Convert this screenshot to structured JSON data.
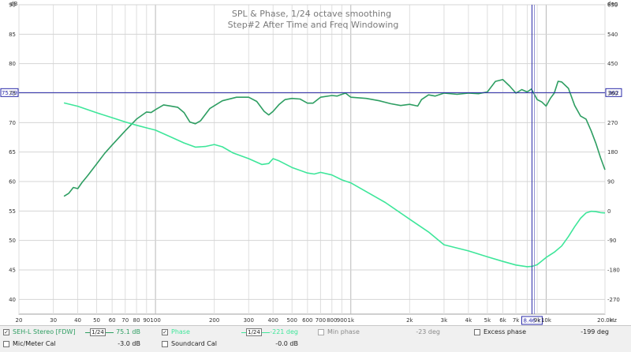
{
  "chart_data": {
    "type": "line",
    "title": "SPL & Phase, 1/24 octave smoothing",
    "subtitle": "Step#2 After Time and Freq Windowing",
    "x_scale": "log",
    "xlim": [
      20,
      20000
    ],
    "x_ticks": [
      {
        "v": 20,
        "label": "20"
      },
      {
        "v": 30,
        "label": "30"
      },
      {
        "v": 40,
        "label": "40"
      },
      {
        "v": 50,
        "label": "50"
      },
      {
        "v": 60,
        "label": "60"
      },
      {
        "v": 70,
        "label": "70"
      },
      {
        "v": 80,
        "label": "80"
      },
      {
        "v": 90,
        "label": "90"
      },
      {
        "v": 100,
        "label": "100"
      },
      {
        "v": 200,
        "label": "200"
      },
      {
        "v": 300,
        "label": "300"
      },
      {
        "v": 400,
        "label": "400"
      },
      {
        "v": 500,
        "label": "500"
      },
      {
        "v": 600,
        "label": "600"
      },
      {
        "v": 700,
        "label": "700"
      },
      {
        "v": 800,
        "label": "800"
      },
      {
        "v": 900,
        "label": "900"
      },
      {
        "v": 1000,
        "label": "1k"
      },
      {
        "v": 2000,
        "label": "2k"
      },
      {
        "v": 3000,
        "label": "3k"
      },
      {
        "v": 4000,
        "label": "4k"
      },
      {
        "v": 5000,
        "label": "5k"
      },
      {
        "v": 6000,
        "label": "6k"
      },
      {
        "v": 7000,
        "label": "7k"
      },
      {
        "v": 9000,
        "label": "9k"
      },
      {
        "v": 10000,
        "label": "10k"
      },
      {
        "v": 20000,
        "label": "20.0k"
      }
    ],
    "x_unit": "Hz",
    "y_left": {
      "unit": "dB",
      "lim": [
        37.5,
        90
      ],
      "ticks": [
        40,
        45,
        50,
        55,
        60,
        65,
        70,
        75,
        80,
        85,
        90
      ]
    },
    "y_right": {
      "unit": "deg",
      "lim": [
        -315,
        630
      ],
      "ticks": [
        -270,
        -180,
        -90,
        0,
        90,
        180,
        270,
        360,
        450,
        540,
        630
      ]
    },
    "cursor": {
      "freq_label": "8.46 k",
      "left_label": "75.09",
      "right_label": "362",
      "x": 8460,
      "y_db": 75.09
    },
    "series": [
      {
        "name": "SEH-L Stereo [FDW]",
        "axis": "left",
        "color": "#2e9e62",
        "points": [
          [
            34,
            57.5
          ],
          [
            36,
            58
          ],
          [
            38,
            59
          ],
          [
            40,
            58.8
          ],
          [
            42,
            59.8
          ],
          [
            45,
            61
          ],
          [
            50,
            63
          ],
          [
            55,
            64.8
          ],
          [
            60,
            66.2
          ],
          [
            70,
            68.6
          ],
          [
            80,
            70.6
          ],
          [
            90,
            71.8
          ],
          [
            95,
            71.7
          ],
          [
            100,
            72.2
          ],
          [
            110,
            73
          ],
          [
            120,
            72.8
          ],
          [
            130,
            72.6
          ],
          [
            140,
            71.7
          ],
          [
            150,
            70.1
          ],
          [
            160,
            69.8
          ],
          [
            170,
            70.3
          ],
          [
            190,
            72.4
          ],
          [
            220,
            73.7
          ],
          [
            260,
            74.3
          ],
          [
            300,
            74.3
          ],
          [
            330,
            73.6
          ],
          [
            360,
            71.9
          ],
          [
            380,
            71.3
          ],
          [
            400,
            71.9
          ],
          [
            430,
            73.1
          ],
          [
            460,
            73.9
          ],
          [
            500,
            74.1
          ],
          [
            550,
            74
          ],
          [
            600,
            73.3
          ],
          [
            640,
            73.3
          ],
          [
            700,
            74.3
          ],
          [
            800,
            74.6
          ],
          [
            850,
            74.5
          ],
          [
            900,
            74.8
          ],
          [
            940,
            75
          ],
          [
            1000,
            74.3
          ],
          [
            1200,
            74.1
          ],
          [
            1400,
            73.7
          ],
          [
            1600,
            73.2
          ],
          [
            1800,
            72.9
          ],
          [
            2000,
            73.1
          ],
          [
            2200,
            72.8
          ],
          [
            2300,
            73.9
          ],
          [
            2500,
            74.7
          ],
          [
            2700,
            74.5
          ],
          [
            3000,
            75
          ],
          [
            3500,
            74.8
          ],
          [
            4000,
            75
          ],
          [
            4500,
            74.9
          ],
          [
            5000,
            75.2
          ],
          [
            5500,
            77
          ],
          [
            6000,
            77.3
          ],
          [
            6500,
            76.2
          ],
          [
            7000,
            75
          ],
          [
            7500,
            75.6
          ],
          [
            8000,
            75.2
          ],
          [
            8400,
            75.7
          ],
          [
            9000,
            73.9
          ],
          [
            9500,
            73.5
          ],
          [
            10000,
            72.8
          ],
          [
            10500,
            74.1
          ],
          [
            11000,
            75
          ],
          [
            11500,
            77
          ],
          [
            12000,
            76.9
          ],
          [
            13000,
            75.8
          ],
          [
            14000,
            72.9
          ],
          [
            15000,
            71.1
          ],
          [
            16000,
            70.6
          ],
          [
            17000,
            68.6
          ],
          [
            18000,
            66.4
          ],
          [
            19000,
            64
          ],
          [
            20000,
            62
          ]
        ]
      },
      {
        "name": "Phase",
        "axis": "right",
        "color": "#3ee69a",
        "points": [
          [
            34,
            330
          ],
          [
            40,
            320
          ],
          [
            50,
            300
          ],
          [
            60,
            285
          ],
          [
            70,
            272
          ],
          [
            80,
            262
          ],
          [
            90,
            254
          ],
          [
            100,
            247
          ],
          [
            120,
            226
          ],
          [
            140,
            208
          ],
          [
            160,
            195
          ],
          [
            180,
            197
          ],
          [
            200,
            203
          ],
          [
            220,
            196
          ],
          [
            250,
            177
          ],
          [
            300,
            160
          ],
          [
            350,
            142
          ],
          [
            380,
            145
          ],
          [
            400,
            160
          ],
          [
            430,
            153
          ],
          [
            500,
            133
          ],
          [
            600,
            116
          ],
          [
            650,
            113
          ],
          [
            700,
            118
          ],
          [
            800,
            110
          ],
          [
            900,
            95
          ],
          [
            1000,
            86
          ],
          [
            1500,
            26
          ],
          [
            2000,
            -25
          ],
          [
            2500,
            -64
          ],
          [
            3000,
            -103
          ],
          [
            4000,
            -122
          ],
          [
            5000,
            -140
          ],
          [
            6000,
            -154
          ],
          [
            7000,
            -165
          ],
          [
            8000,
            -170
          ],
          [
            8500,
            -169
          ],
          [
            9000,
            -164
          ],
          [
            10000,
            -142
          ],
          [
            11000,
            -126
          ],
          [
            12000,
            -107
          ],
          [
            13000,
            -78
          ],
          [
            14000,
            -48
          ],
          [
            15000,
            -22
          ],
          [
            16000,
            -6
          ],
          [
            17000,
            -1
          ],
          [
            18000,
            -2
          ],
          [
            19000,
            -5
          ],
          [
            20000,
            -6
          ]
        ]
      }
    ],
    "grid": true
  },
  "legend": {
    "items": [
      {
        "label": "SEH-L Stereo [FDW]",
        "checked": "✓",
        "smoothing": "1/24",
        "value": "75.1 dB"
      },
      {
        "label": "Phase",
        "checked": "✓",
        "smoothing": "1/24",
        "value": "-221 deg"
      },
      {
        "label": "Min phase",
        "checked": "",
        "value": "-23 deg"
      },
      {
        "label": "Excess phase",
        "checked": "",
        "value": "-199 deg"
      },
      {
        "label": "Mic/Meter Cal",
        "checked": "",
        "value": "-3.0 dB"
      },
      {
        "label": "Soundcard Cal",
        "checked": "",
        "value": "-0.0 dB"
      }
    ],
    "colors": {
      "primary": "#2e9e62",
      "phase": "#3ee69a",
      "disabled": "#8a8a8a"
    }
  }
}
